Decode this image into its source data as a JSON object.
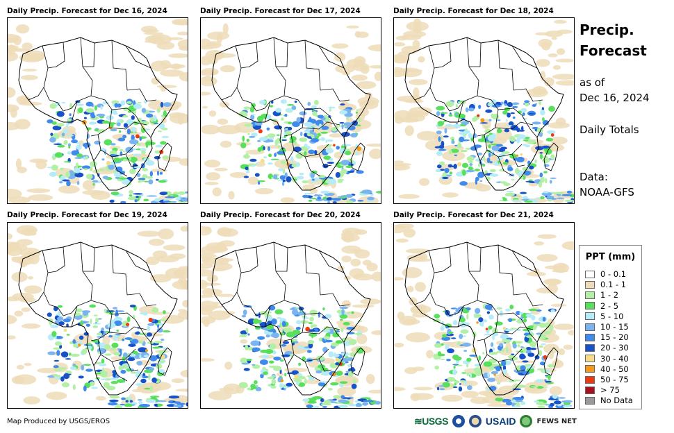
{
  "panels": [
    {
      "title": "Daily Precip. Forecast for Dec 16, 2024"
    },
    {
      "title": "Daily Precip. Forecast for Dec 17, 2024"
    },
    {
      "title": "Daily Precip. Forecast for Dec 18, 2024"
    },
    {
      "title": "Daily Precip. Forecast for Dec 19, 2024"
    },
    {
      "title": "Daily Precip. Forecast for Dec 20, 2024"
    },
    {
      "title": "Daily Precip. Forecast for Dec 21, 2024"
    }
  ],
  "side": {
    "title_line1": "Precip.",
    "title_line2": "Forecast",
    "as_of_line1": "as of",
    "as_of_line2": "Dec 16, 2024",
    "totals": "Daily Totals",
    "data_line1": "Data:",
    "data_line2": "NOAA-GFS"
  },
  "legend": {
    "title": "PPT (mm)",
    "items": [
      {
        "label": "0 - 0.1",
        "color": "#ffffff"
      },
      {
        "label": "0.1 - 1",
        "color": "#eedcb9"
      },
      {
        "label": "1 - 2",
        "color": "#b3f0a6"
      },
      {
        "label": "2 - 5",
        "color": "#58e05c"
      },
      {
        "label": "5 - 10",
        "color": "#b6ecf7"
      },
      {
        "label": "10 - 15",
        "color": "#7ab4f0"
      },
      {
        "label": "15 - 20",
        "color": "#3f8aea"
      },
      {
        "label": "20 - 30",
        "color": "#1852c8"
      },
      {
        "label": "30 - 40",
        "color": "#f6dc87"
      },
      {
        "label": "40 - 50",
        "color": "#f39a1c"
      },
      {
        "label": "50 - 75",
        "color": "#ee3a12"
      },
      {
        "label": "> 75",
        "color": "#a8101c"
      },
      {
        "label": "No Data",
        "color": "#9a9a9a"
      }
    ]
  },
  "footer": {
    "credit": "Map Produced by USGS/EROS",
    "logo_usgs": "USGS",
    "logo_usaid": "USAID",
    "logo_fews": "FEWS NET"
  }
}
